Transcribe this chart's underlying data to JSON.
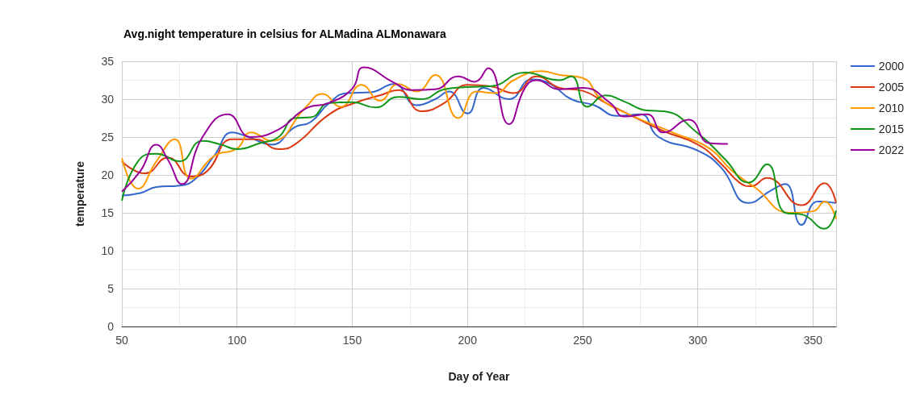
{
  "chart_data": {
    "type": "line",
    "title": "Avg.night temperature in celsius for ALMadina ALMonawara",
    "xlabel": "Day of Year",
    "ylabel": "temperature",
    "xlim": [
      50,
      360
    ],
    "xticks": [
      50,
      100,
      150,
      200,
      250,
      300,
      350
    ],
    "ylim": [
      0,
      35
    ],
    "yticks": [
      0,
      5,
      10,
      15,
      20,
      25,
      30,
      35
    ],
    "grid": true,
    "legend": "right",
    "series": [
      {
        "name": "2000",
        "color": "#3366cc",
        "x": [
          50,
          58,
          65,
          75,
          82,
          90,
          98,
          105,
          115,
          125,
          132,
          140,
          148,
          158,
          168,
          178,
          186,
          192,
          200,
          207,
          218,
          228,
          236,
          245,
          255,
          265,
          275,
          283,
          300,
          310,
          322,
          332,
          338,
          345,
          352,
          360
        ],
        "values": [
          17.3,
          17.6,
          18.4,
          18.6,
          19.5,
          22.5,
          25.6,
          25,
          24,
          26.3,
          27,
          29.5,
          30.8,
          30.9,
          32,
          29.2,
          30,
          31,
          28.1,
          31.5,
          30,
          32.6,
          32,
          30,
          29.2,
          27.8,
          28,
          25,
          23.2,
          21,
          16.3,
          18,
          18.8,
          13.4,
          16.5,
          16.3
        ]
      },
      {
        "name": "2005",
        "color": "#dc3912",
        "x": [
          50,
          60,
          70,
          80,
          87,
          98,
          108,
          118,
          125,
          140,
          152,
          162,
          170,
          180,
          190,
          200,
          210,
          220,
          230,
          240,
          250,
          260,
          270,
          285,
          300,
          310,
          318,
          323,
          330,
          345,
          355,
          360
        ],
        "values": [
          21.8,
          20.2,
          22.3,
          19.8,
          20.5,
          24.7,
          24.7,
          23.4,
          24,
          28,
          29.6,
          30.5,
          31.2,
          28.4,
          29.5,
          31.9,
          31.7,
          30.8,
          33,
          31.5,
          31.1,
          29.5,
          28,
          25.8,
          24,
          21.5,
          19,
          18.5,
          19.6,
          16,
          18.9,
          16.3
        ]
      },
      {
        "name": "2010",
        "color": "#ff9900",
        "x": [
          50,
          57,
          65,
          73,
          80,
          90,
          100,
          106,
          115,
          130,
          137,
          145,
          154,
          162,
          170,
          178,
          186,
          196,
          204,
          212,
          220,
          232,
          240,
          250,
          258,
          270,
          290,
          305,
          315,
          325,
          340,
          350,
          355,
          360
        ],
        "values": [
          22.2,
          18.2,
          21.8,
          24.7,
          19.5,
          22.5,
          23.5,
          25.6,
          24.5,
          29,
          30.7,
          29,
          31.9,
          29.8,
          32,
          31,
          33.2,
          27.5,
          31,
          30.8,
          32.5,
          33.7,
          33.2,
          32.8,
          30,
          28,
          25.5,
          23.5,
          20.5,
          18.3,
          15,
          15.2,
          16.5,
          14.2
        ]
      },
      {
        "name": "2015",
        "color": "#109618",
        "x": [
          50,
          57,
          65,
          75,
          85,
          93,
          100,
          110,
          118,
          125,
          132,
          140,
          150,
          160,
          170,
          180,
          190,
          200,
          210,
          225,
          240,
          245,
          252,
          260,
          268,
          278,
          285,
          300,
          312,
          322,
          330,
          338,
          345,
          355,
          360
        ],
        "values": [
          16.6,
          21.8,
          22.8,
          21.8,
          24.5,
          24,
          23.4,
          24.2,
          25,
          27.5,
          27.6,
          29.5,
          29.6,
          28.9,
          30.3,
          30,
          31.3,
          31.6,
          31.7,
          33.5,
          32.5,
          33,
          29,
          30.5,
          29.7,
          28.5,
          28.4,
          25.5,
          22,
          19,
          21.4,
          15,
          14.8,
          12.9,
          15.3
        ]
      },
      {
        "name": "2022",
        "color": "#990099",
        "x": [
          50,
          58,
          65,
          70,
          76,
          85,
          96,
          106,
          118,
          130,
          140,
          150,
          155,
          168,
          176,
          186,
          196,
          203,
          209,
          218,
          225,
          230,
          240,
          250,
          262,
          268,
          278,
          285,
          296,
          305,
          313
        ],
        "values": [
          17.8,
          20.5,
          24,
          22,
          18.8,
          25,
          28,
          25,
          26,
          28.8,
          29.5,
          31.4,
          34.2,
          32.2,
          31.2,
          31.3,
          33,
          32.3,
          34.1,
          26.7,
          31.5,
          32.5,
          31.3,
          31.5,
          29.5,
          27.7,
          28,
          25.6,
          27.3,
          24.2,
          24.1
        ]
      }
    ]
  }
}
